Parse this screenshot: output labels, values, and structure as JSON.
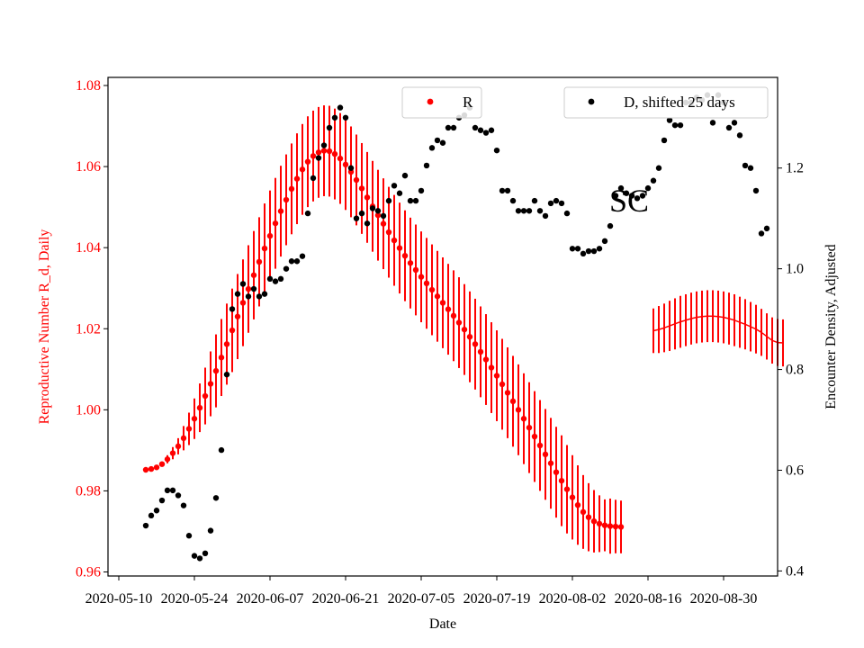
{
  "chart_data": {
    "type": "scatter",
    "title": "",
    "annotation": "SC",
    "xlabel": "Date",
    "ylabel_left": "Reproductive Number R_d, Daily",
    "ylabel_right": "Encounter Density, Adjusted",
    "ylim_left": [
      0.959,
      1.082
    ],
    "ylim_right": [
      0.39,
      1.38
    ],
    "xlim": [
      "2020-05-08",
      "2020-09-09"
    ],
    "x_ticks": [
      "2020-05-10",
      "2020-05-24",
      "2020-06-07",
      "2020-06-21",
      "2020-07-05",
      "2020-07-19",
      "2020-08-02",
      "2020-08-16",
      "2020-08-30"
    ],
    "y_ticks_left": [
      "0.96",
      "0.98",
      "1.00",
      "1.02",
      "1.04",
      "1.06",
      "1.08"
    ],
    "y_ticks_right": [
      "0.4",
      "0.6",
      "0.8",
      "1.0",
      "1.2"
    ],
    "grid": false,
    "colors": {
      "R": "#ff0000",
      "D": "#000000",
      "left_axis": "#ff0000",
      "right_axis": "#000000"
    },
    "legend": [
      {
        "label": "R",
        "color": "#ff0000",
        "position": "top-center"
      },
      {
        "label": "D, shifted 25 days",
        "color": "#000000",
        "position": "top-right"
      }
    ],
    "series": [
      {
        "name": "R",
        "axis": "left",
        "style": "points-with-error-bars",
        "start_date": "2020-05-15",
        "values": [
          0.9852,
          0.9854,
          0.9858,
          0.9866,
          0.9878,
          0.9893,
          0.991,
          0.993,
          0.9953,
          0.9978,
          1.0005,
          1.0034,
          1.0064,
          1.0096,
          1.0129,
          1.0162,
          1.0196,
          1.023,
          1.0264,
          1.0298,
          1.0332,
          1.0365,
          1.0398,
          1.0429,
          1.046,
          1.049,
          1.0518,
          1.0545,
          1.057,
          1.0593,
          1.0612,
          1.0626,
          1.0635,
          1.0639,
          1.0638,
          1.0631,
          1.062,
          1.0605,
          1.0587,
          1.0567,
          1.0546,
          1.0524,
          1.0502,
          1.048,
          1.0459,
          1.0438,
          1.0418,
          1.0399,
          1.038,
          1.0362,
          1.0345,
          1.0328,
          1.0312,
          1.0296,
          1.028,
          1.0264,
          1.0248,
          1.0232,
          1.0215,
          1.0198,
          1.018,
          1.0162,
          1.0143,
          1.0124,
          1.0104,
          1.0084,
          1.0063,
          1.0042,
          1.0021,
          1.0,
          0.9978,
          0.9956,
          0.9934,
          0.9912,
          0.989,
          0.9868,
          0.9846,
          0.9825,
          0.9804,
          0.9784,
          0.9765,
          0.9748,
          0.9735,
          0.9725,
          0.9719,
          0.9715,
          0.9713,
          0.9712,
          0.9711
        ],
        "err": [
          0,
          0,
          0,
          0,
          0.001,
          0.0015,
          0.002,
          0.003,
          0.004,
          0.005,
          0.006,
          0.007,
          0.008,
          0.009,
          0.0095,
          0.01,
          0.0103,
          0.0105,
          0.0107,
          0.0108,
          0.0109,
          0.011,
          0.0111,
          0.0112,
          0.0112,
          0.0112,
          0.0112,
          0.0112,
          0.0112,
          0.0112,
          0.0112,
          0.0112,
          0.0112,
          0.0112,
          0.0112,
          0.0112,
          0.0112,
          0.0112,
          0.0112,
          0.0112,
          0.0112,
          0.0112,
          0.0112,
          0.0112,
          0.0112,
          0.0112,
          0.0112,
          0.0112,
          0.0112,
          0.0112,
          0.0112,
          0.0112,
          0.0112,
          0.0112,
          0.0112,
          0.0112,
          0.0112,
          0.0112,
          0.0112,
          0.0112,
          0.0112,
          0.0112,
          0.0112,
          0.0112,
          0.0112,
          0.0112,
          0.0112,
          0.0112,
          0.0112,
          0.0112,
          0.0112,
          0.0112,
          0.0112,
          0.0112,
          0.0112,
          0.0112,
          0.0112,
          0.0112,
          0.0109,
          0.0104,
          0.0098,
          0.0091,
          0.0084,
          0.0077,
          0.007,
          0.0064,
          0.0068,
          0.0066,
          0.0065
        ]
      },
      {
        "name": "R (SC)",
        "axis": "left",
        "style": "lines-with-error-bars",
        "start_date": "2020-08-17",
        "values": [
          1.0195,
          1.0198,
          1.0202,
          1.0207,
          1.0212,
          1.0217,
          1.0221,
          1.0225,
          1.0228,
          1.023,
          1.0231,
          1.0231,
          1.023,
          1.0228,
          1.0225,
          1.0221,
          1.0216,
          1.0211,
          1.0205,
          1.0199,
          1.0191,
          1.0181,
          1.0171,
          1.0166,
          1.0165
        ],
        "err": [
          0.0055,
          0.0058,
          0.006,
          0.0062,
          0.0063,
          0.0064,
          0.0064,
          0.0064,
          0.0064,
          0.0064,
          0.0064,
          0.0064,
          0.0064,
          0.0064,
          0.0064,
          0.0064,
          0.0063,
          0.0062,
          0.0061,
          0.006,
          0.0058,
          0.0057,
          0.0057,
          0.0058,
          0.0058
        ]
      },
      {
        "name": "D, shifted 25 days",
        "axis": "right",
        "style": "points",
        "start_date": "2020-05-15",
        "values": [
          0.49,
          0.51,
          0.52,
          0.54,
          0.56,
          0.56,
          0.55,
          0.53,
          0.47,
          0.43,
          0.425,
          0.435,
          0.48,
          0.545,
          0.64,
          0.79,
          0.92,
          0.95,
          0.97,
          0.945,
          0.96,
          0.945,
          0.95,
          0.98,
          0.975,
          0.98,
          1.0,
          1.015,
          1.015,
          1.025,
          1.11,
          1.18,
          1.22,
          1.245,
          1.28,
          1.3,
          1.32,
          1.3,
          1.2,
          1.1,
          1.11,
          1.09,
          1.12,
          1.115,
          1.105,
          1.135,
          1.165,
          1.15,
          1.185,
          1.135,
          1.135,
          1.155,
          1.205,
          1.24,
          1.255,
          1.25,
          1.28,
          1.28,
          1.3,
          1.305,
          1.32,
          1.28,
          1.275,
          1.27,
          1.275,
          1.235,
          1.155,
          1.155,
          1.135,
          1.115,
          1.115,
          1.115,
          1.135,
          1.115,
          1.105,
          1.13,
          1.135,
          1.13,
          1.11,
          1.04,
          1.04,
          1.03,
          1.035,
          1.035,
          1.04,
          1.055,
          1.085,
          1.145,
          1.16,
          1.15,
          1.145,
          1.14,
          1.145,
          1.16,
          1.175,
          1.2,
          1.255,
          1.295,
          1.285,
          1.285,
          1.33,
          1.33,
          1.34,
          1.335,
          1.345,
          1.29,
          1.345,
          1.33,
          1.28,
          1.29,
          1.265,
          1.205,
          1.2,
          1.155,
          1.07,
          1.08
        ]
      }
    ]
  }
}
